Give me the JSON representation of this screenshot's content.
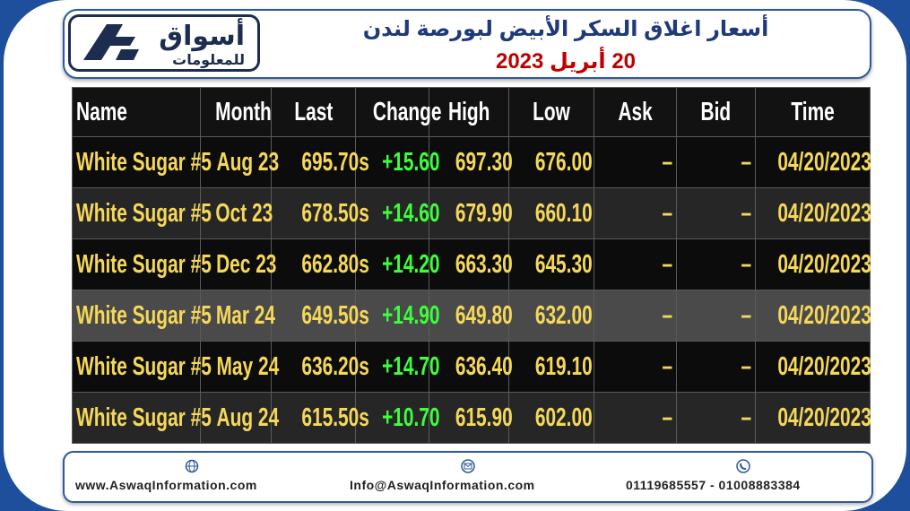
{
  "header": {
    "logo_text": "أسواق",
    "logo_subtext": "للمعلومات",
    "title": "أسعار اغلاق السكر الأبيض لبورصة لندن",
    "date": "20 أبريل 2023"
  },
  "table": {
    "columns": [
      "Name",
      "Month",
      "Last",
      "Change",
      "High",
      "Low",
      "Ask",
      "Bid",
      "Time"
    ],
    "rows": [
      [
        "White Sugar #5",
        "Aug 23",
        "695.70s",
        "+15.60",
        "697.30",
        "676.00",
        "–",
        "–",
        "04/20/2023"
      ],
      [
        "White Sugar #5",
        "Oct 23",
        "678.50s",
        "+14.60",
        "679.90",
        "660.10",
        "–",
        "–",
        "04/20/2023"
      ],
      [
        "White Sugar #5",
        "Dec 23",
        "662.80s",
        "+14.20",
        "663.30",
        "645.30",
        "–",
        "–",
        "04/20/2023"
      ],
      [
        "White Sugar #5",
        "Mar 24",
        "649.50s",
        "+14.90",
        "649.80",
        "632.00",
        "–",
        "–",
        "04/20/2023"
      ],
      [
        "White Sugar #5",
        "May 24",
        "636.20s",
        "+14.70",
        "636.40",
        "619.10",
        "–",
        "–",
        "04/20/2023"
      ],
      [
        "White Sugar #5",
        "Aug 24",
        "615.50s",
        "+10.70",
        "615.90",
        "602.00",
        "–",
        "–",
        "04/20/2023"
      ]
    ]
  },
  "footer": {
    "website": "www.AswaqInformation.com",
    "email": "Info@AswaqInformation.com",
    "phone": "01119685557 - 01008883384"
  }
}
